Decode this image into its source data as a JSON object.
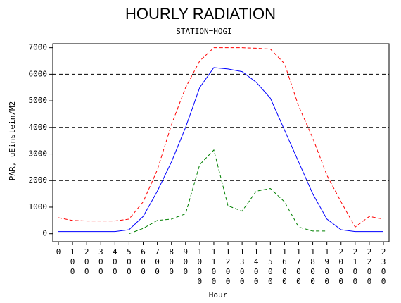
{
  "chart_data": {
    "type": "line",
    "title": "HOURLY RADIATION",
    "subtitle": "STATION=HOGI",
    "x_label": "Hour",
    "y_label": "PAR, uEinstein/M2",
    "categories": [
      "0",
      "100",
      "200",
      "300",
      "400",
      "500",
      "600",
      "700",
      "800",
      "900",
      "1000",
      "1100",
      "1200",
      "1300",
      "1400",
      "1500",
      "1600",
      "1700",
      "1800",
      "1900",
      "2000",
      "2100",
      "2200",
      "2300"
    ],
    "ylim": [
      -300,
      7150
    ],
    "yticks": [
      0,
      1000,
      2000,
      3000,
      4000,
      5000,
      6000,
      7000
    ],
    "grid_values": [
      2000,
      4000,
      6000
    ],
    "series": [
      {
        "color": "#0000ff",
        "style": "solid",
        "values": [
          80,
          80,
          80,
          80,
          80,
          150,
          650,
          1600,
          2700,
          4000,
          5500,
          6250,
          6200,
          6100,
          5700,
          5100,
          3900,
          2700,
          1500,
          550,
          150,
          80,
          80,
          80
        ]
      },
      {
        "color": "#ff0000",
        "style": "dashed",
        "values": [
          600,
          500,
          480,
          480,
          480,
          550,
          1200,
          2400,
          4100,
          5500,
          6500,
          7000,
          7000,
          7000,
          6980,
          6950,
          6400,
          4800,
          3600,
          2200,
          1200,
          250,
          650,
          550
        ]
      },
      {
        "color": "#008000",
        "style": "dashed",
        "values": [
          null,
          null,
          null,
          null,
          null,
          0,
          200,
          500,
          550,
          750,
          2600,
          3150,
          1050,
          850,
          1600,
          1700,
          1200,
          250,
          100,
          100,
          null,
          null,
          null,
          null
        ]
      }
    ]
  }
}
